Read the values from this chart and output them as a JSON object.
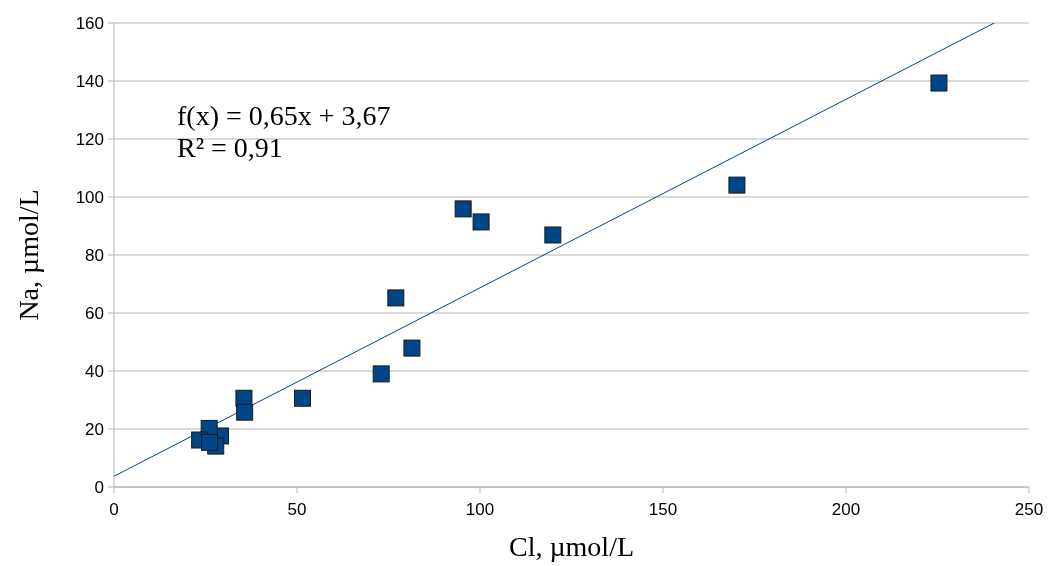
{
  "chart_data": {
    "type": "scatter",
    "xlabel": "Cl, µmol/L",
    "ylabel": "Na, µmol/L",
    "xlim": [
      0,
      250
    ],
    "ylim": [
      0,
      160
    ],
    "xticks": [
      0,
      50,
      100,
      150,
      200,
      250
    ],
    "yticks": [
      0,
      20,
      40,
      60,
      80,
      100,
      120,
      140,
      160
    ],
    "grid": "y",
    "marker": "square",
    "annotations": [
      "f(x) = 0,65x + 3,67",
      "R² = 0,91"
    ],
    "series": [
      {
        "color": "#004586",
        "x": [
          225.4,
          170.2,
          119.9,
          100.3,
          95.4,
          77.0,
          81.4,
          73.0,
          51.5,
          35.5,
          35.7,
          29.1,
          26.0,
          23.4,
          27.8,
          26.1
        ],
        "values": [
          139.3,
          104.1,
          86.9,
          91.4,
          95.9,
          65.2,
          47.9,
          39.0,
          30.6,
          30.6,
          25.8,
          17.6,
          20.2,
          16.2,
          14.1,
          15.4
        ]
      },
      {
        "type": "line",
        "marker": "none",
        "color": "#004586",
        "x": [
          0,
          240.5
        ],
        "values": [
          3.7,
          160
        ]
      }
    ]
  }
}
